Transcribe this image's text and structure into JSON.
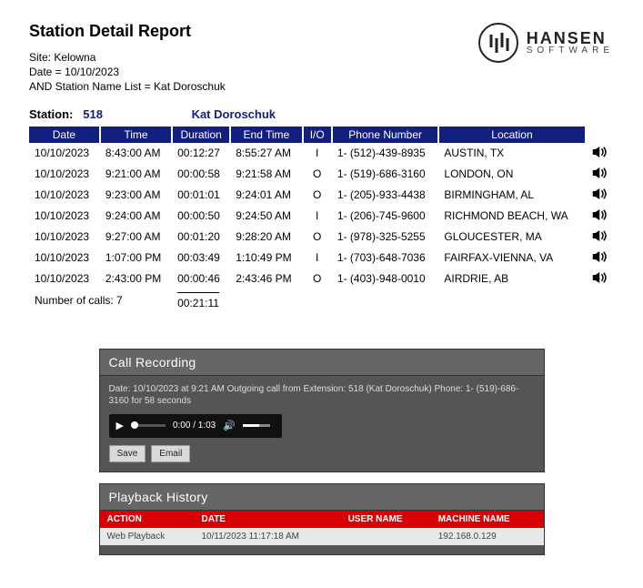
{
  "header": {
    "title": "Station Detail Report",
    "site_line": "Site: Kelowna",
    "date_line": "Date = 10/10/2023",
    "filter_line": " AND Station Name List = Kat Doroschuk",
    "brand": "HANSEN",
    "brand_sub": "SOFTWARE"
  },
  "station": {
    "label": "Station:",
    "number": "518",
    "name": "Kat Doroschuk"
  },
  "table": {
    "columns": [
      "Date",
      "Time",
      "Duration",
      "End Time",
      "I/O",
      "Phone Number",
      "Location"
    ],
    "rows": [
      {
        "date": "10/10/2023",
        "time": "8:43:00 AM",
        "duration": "00:12:27",
        "end": "8:55:27 AM",
        "io": "I",
        "phone": "1- (512)-439-8935",
        "loc": "AUSTIN, TX"
      },
      {
        "date": "10/10/2023",
        "time": "9:21:00 AM",
        "duration": "00:00:58",
        "end": "9:21:58 AM",
        "io": "O",
        "phone": "1- (519)-686-3160",
        "loc": "LONDON, ON"
      },
      {
        "date": "10/10/2023",
        "time": "9:23:00 AM",
        "duration": "00:01:01",
        "end": "9:24:01 AM",
        "io": "O",
        "phone": "1- (205)-933-4438",
        "loc": "BIRMINGHAM, AL"
      },
      {
        "date": "10/10/2023",
        "time": "9:24:00 AM",
        "duration": "00:00:50",
        "end": "9:24:50 AM",
        "io": "I",
        "phone": "1- (206)-745-9600",
        "loc": "RICHMOND BEACH, WA"
      },
      {
        "date": "10/10/2023",
        "time": "9:27:00 AM",
        "duration": "00:01:20",
        "end": "9:28:20 AM",
        "io": "O",
        "phone": "1- (978)-325-5255",
        "loc": "GLOUCESTER, MA"
      },
      {
        "date": "10/10/2023",
        "time": "1:07:00 PM",
        "duration": "00:03:49",
        "end": "1:10:49 PM",
        "io": "I",
        "phone": "1- (703)-648-7036",
        "loc": "FAIRFAX-VIENNA, VA"
      },
      {
        "date": "10/10/2023",
        "time": "2:43:00 PM",
        "duration": "00:00:46",
        "end": "2:43:46 PM",
        "io": "O",
        "phone": "1- (403)-948-0010",
        "loc": "AIRDRIE, AB"
      }
    ],
    "summary_label": "Number of calls:  7",
    "summary_duration": "00:21:11"
  },
  "recording": {
    "title": "Call Recording",
    "meta": "Date: 10/10/2023 at 9:21 AM Outgoing call from Extension: 518 (Kat Doroschuk) Phone: 1- (519)-686-3160 for 58 seconds",
    "time_current": "0:00",
    "time_total": "1:03",
    "save_label": "Save",
    "email_label": "Email"
  },
  "history": {
    "title": "Playback History",
    "columns": [
      "ACTION",
      "DATE",
      "USER NAME",
      "MACHINE NAME"
    ],
    "rows": [
      {
        "action": "Web Playback",
        "date": "10/11/2023 11:17:18 AM",
        "user": "",
        "machine": "192.168.0.129"
      }
    ]
  },
  "style": {
    "header_bg": "#131f7f",
    "history_header_bg": "#d80000"
  }
}
